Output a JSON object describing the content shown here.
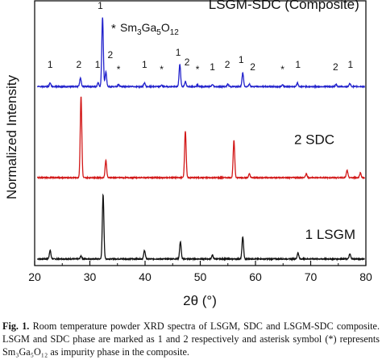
{
  "chart_data": {
    "type": "line",
    "xlabel": "2θ (°)",
    "ylabel": "Normalized Intensity",
    "xlim": [
      20,
      80
    ],
    "x_ticks": [
      20,
      30,
      40,
      50,
      60,
      70,
      80
    ],
    "grid": false,
    "series": [
      {
        "name": "1 LSGM",
        "color": "#111111",
        "baseline": 0.0,
        "peaks": [
          {
            "x": 22.8,
            "h": 0.035
          },
          {
            "x": 28.4,
            "h": 0.012
          },
          {
            "x": 32.4,
            "h": 0.26
          },
          {
            "x": 39.9,
            "h": 0.035
          },
          {
            "x": 46.4,
            "h": 0.07
          },
          {
            "x": 52.2,
            "h": 0.015
          },
          {
            "x": 57.7,
            "h": 0.09
          },
          {
            "x": 67.7,
            "h": 0.025
          },
          {
            "x": 77.1,
            "h": 0.02
          }
        ]
      },
      {
        "name": "2 SDC",
        "color": "#d21818",
        "baseline": 0.33,
        "peaks": [
          {
            "x": 28.4,
            "h": 0.33
          },
          {
            "x": 32.9,
            "h": 0.07
          },
          {
            "x": 47.3,
            "h": 0.19
          },
          {
            "x": 56.1,
            "h": 0.15
          },
          {
            "x": 58.9,
            "h": 0.015
          },
          {
            "x": 69.2,
            "h": 0.015
          },
          {
            "x": 76.6,
            "h": 0.03
          },
          {
            "x": 79.0,
            "h": 0.02
          }
        ]
      },
      {
        "name": "LSGM-SDC (Composite)",
        "color": "#2222cc",
        "baseline": 0.7,
        "peaks": [
          {
            "x": 22.8,
            "h": 0.015
          },
          {
            "x": 28.3,
            "h": 0.035
          },
          {
            "x": 31.5,
            "h": 0.015
          },
          {
            "x": 32.3,
            "h": 0.28
          },
          {
            "x": 32.9,
            "h": 0.06
          },
          {
            "x": 35.2,
            "h": 0.008
          },
          {
            "x": 39.9,
            "h": 0.015
          },
          {
            "x": 43.0,
            "h": 0.006
          },
          {
            "x": 46.3,
            "h": 0.09
          },
          {
            "x": 47.3,
            "h": 0.02
          },
          {
            "x": 49.5,
            "h": 0.006
          },
          {
            "x": 52.2,
            "h": 0.008
          },
          {
            "x": 55.0,
            "h": 0.01
          },
          {
            "x": 57.7,
            "h": 0.055
          },
          {
            "x": 58.9,
            "h": 0.01
          },
          {
            "x": 64.9,
            "h": 0.006
          },
          {
            "x": 67.6,
            "h": 0.015
          },
          {
            "x": 74.6,
            "h": 0.008
          },
          {
            "x": 77.1,
            "h": 0.012
          }
        ]
      }
    ],
    "series_labels": [
      {
        "text": "LSGM-SDC (Composite)",
        "anchor_x": 51.5,
        "anchor_y": 1.02
      },
      {
        "text": "2 SDC",
        "anchor_x": 67.0,
        "anchor_y": 0.47
      },
      {
        "text": "1 LSGM",
        "anchor_x": 69.0,
        "anchor_y": 0.085
      }
    ],
    "peak_annotations": [
      {
        "text": "1",
        "x": 22.8,
        "y": 0.78
      },
      {
        "text": "2",
        "x": 28.0,
        "y": 0.78
      },
      {
        "text": "1",
        "x": 31.4,
        "y": 0.78
      },
      {
        "text": "1",
        "x": 31.9,
        "y": 1.02
      },
      {
        "text": "2",
        "x": 33.7,
        "y": 0.82
      },
      {
        "text": "*",
        "x": 35.2,
        "y": 0.76
      },
      {
        "text": "1",
        "x": 39.9,
        "y": 0.78
      },
      {
        "text": "*",
        "x": 43.0,
        "y": 0.76
      },
      {
        "text": "1",
        "x": 46.0,
        "y": 0.83
      },
      {
        "text": "2",
        "x": 47.6,
        "y": 0.79
      },
      {
        "text": "*",
        "x": 49.5,
        "y": 0.76
      },
      {
        "text": "1",
        "x": 52.2,
        "y": 0.77
      },
      {
        "text": "2",
        "x": 54.9,
        "y": 0.78
      },
      {
        "text": "1",
        "x": 57.4,
        "y": 0.8
      },
      {
        "text": "2",
        "x": 59.5,
        "y": 0.77
      },
      {
        "text": "*",
        "x": 64.9,
        "y": 0.76
      },
      {
        "text": "1",
        "x": 67.7,
        "y": 0.78
      },
      {
        "text": "2",
        "x": 74.5,
        "y": 0.77
      },
      {
        "text": "1",
        "x": 77.2,
        "y": 0.78
      }
    ],
    "legend_entry": {
      "symbol": "*",
      "formula_main": "Sm",
      "sub1": "3",
      "mid": "Ga",
      "sub2": "5",
      "mid2": "O",
      "sub3": "12"
    }
  },
  "caption": {
    "label": "Fig. 1.",
    "text": "Room temperature powder XRD spectra of LSGM, SDC and LSGM-SDC composite. LSGM and SDC phase are marked as 1 and 2 respectively and asterisk symbol (*) represents Sm₃Ga₅O₁₂ as impurity phase in the composite."
  }
}
